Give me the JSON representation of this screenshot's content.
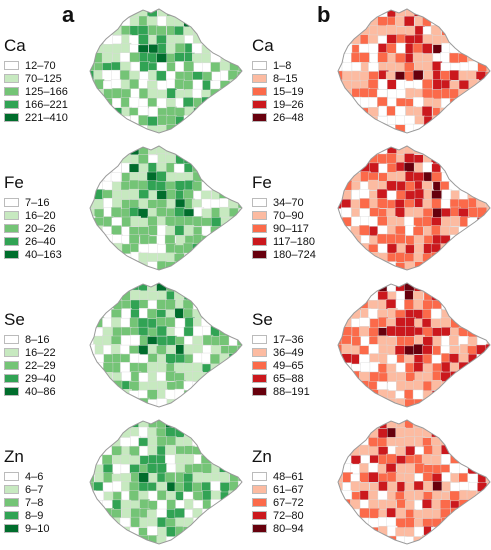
{
  "panels": [
    {
      "label": "a",
      "palette": [
        "#ffffff",
        "#c7e9c0",
        "#74c476",
        "#31a354",
        "#006d2c"
      ],
      "legends": [
        {
          "nutrient": "Ca",
          "ranges": [
            "12–70",
            "70–125",
            "125–166",
            "166–221",
            "221–410"
          ]
        },
        {
          "nutrient": "Fe",
          "ranges": [
            "7–16",
            "16–20",
            "20–26",
            "26–40",
            "40–163"
          ]
        },
        {
          "nutrient": "Se",
          "ranges": [
            "8–16",
            "16–22",
            "22–29",
            "29–40",
            "40–86"
          ]
        },
        {
          "nutrient": "Zn",
          "ranges": [
            "4–6",
            "6–7",
            "7–8",
            "8–9",
            "9–10"
          ]
        }
      ]
    },
    {
      "label": "b",
      "palette": [
        "#ffffff",
        "#fcbba1",
        "#fb6a4a",
        "#cb181d",
        "#67000d"
      ],
      "legends": [
        {
          "nutrient": "Ca",
          "ranges": [
            "1–8",
            "8–15",
            "15–19",
            "19–26",
            "26–48"
          ]
        },
        {
          "nutrient": "Fe",
          "ranges": [
            "34–70",
            "70–90",
            "90–117",
            "117–180",
            "180–724"
          ]
        },
        {
          "nutrient": "Se",
          "ranges": [
            "17–36",
            "36–49",
            "49–65",
            "65–88",
            "88–191"
          ]
        },
        {
          "nutrient": "Zn",
          "ranges": [
            "48–61",
            "61–67",
            "67–72",
            "72–80",
            "80–94"
          ]
        }
      ]
    }
  ]
}
